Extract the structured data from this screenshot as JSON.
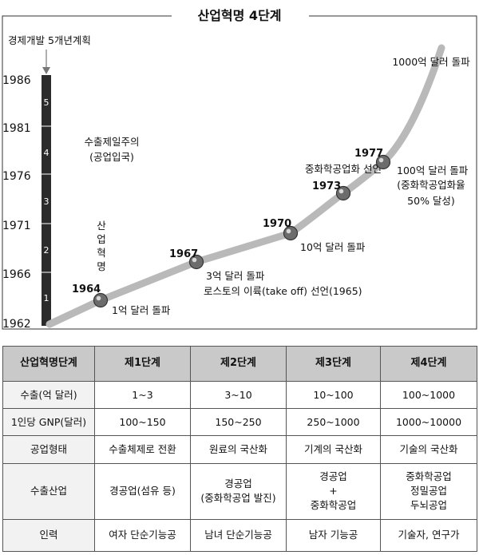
{
  "title": "산업혁명 4단계",
  "plan_label": "경제개발 5개년계획",
  "chart_data": {
    "type": "line",
    "title": "산업혁명 4단계",
    "y_axis": {
      "ticks": [
        "1986",
        "1981",
        "1976",
        "1971",
        "1966",
        "1962"
      ],
      "min": 1962,
      "max": 1986
    },
    "plan_bar_numbers": [
      "5",
      "4",
      "3",
      "2",
      "1"
    ],
    "points": [
      {
        "year": 1964,
        "label": "1964",
        "note": "1억 달러 돌파"
      },
      {
        "year": 1967,
        "label": "1967",
        "note": "3억 달러 돌파"
      },
      {
        "year": 1970,
        "label": "1970",
        "note": "10억 달러 돌파"
      },
      {
        "year": 1973,
        "label": "1973",
        "note": "중화학공업화 선언"
      },
      {
        "year": 1977,
        "label": "1977",
        "note": "100억 달러 돌파"
      }
    ],
    "annotations": {
      "export_first": [
        "수출제일주의",
        "(공업입국)"
      ],
      "industrial_revolution": [
        "산",
        "업",
        "혁",
        "명"
      ],
      "rostow": "로스토의 이륙(take off) 선언(1965)",
      "chem_ratio": [
        "(중화학공업화율",
        "50% 달성)"
      ],
      "top": "1000억 달러 돌파"
    }
  },
  "table": {
    "header": [
      "산업혁명단계",
      "제1단계",
      "제2단계",
      "제3단계",
      "제4단계"
    ],
    "rows": [
      {
        "label": "수출(억 달러)",
        "cells": [
          [
            "1~3"
          ],
          [
            "3~10"
          ],
          [
            "10~100"
          ],
          [
            "100~1000"
          ]
        ]
      },
      {
        "label": "1인당 GNP(달러)",
        "cells": [
          [
            "100~150"
          ],
          [
            "150~250"
          ],
          [
            "250~1000"
          ],
          [
            "1000~10000"
          ]
        ]
      },
      {
        "label": "공업형태",
        "cells": [
          [
            "수출체제로 전환"
          ],
          [
            "원료의 국산화"
          ],
          [
            "기계의 국산화"
          ],
          [
            "기술의 국산화"
          ]
        ]
      },
      {
        "label": "수출산업",
        "cells": [
          [
            "경공업(섬유 등)"
          ],
          [
            "경공업",
            "(중화학공업 발진)"
          ],
          [
            "경공업",
            "+",
            "중화학공업"
          ],
          [
            "중화학공업",
            "정밀공업",
            "두뇌공업"
          ]
        ]
      },
      {
        "label": "인력",
        "cells": [
          [
            "여자 단순기능공"
          ],
          [
            "남녀 단순기능공"
          ],
          [
            "남자 기능공"
          ],
          [
            "기술자, 연구가"
          ]
        ]
      }
    ]
  }
}
